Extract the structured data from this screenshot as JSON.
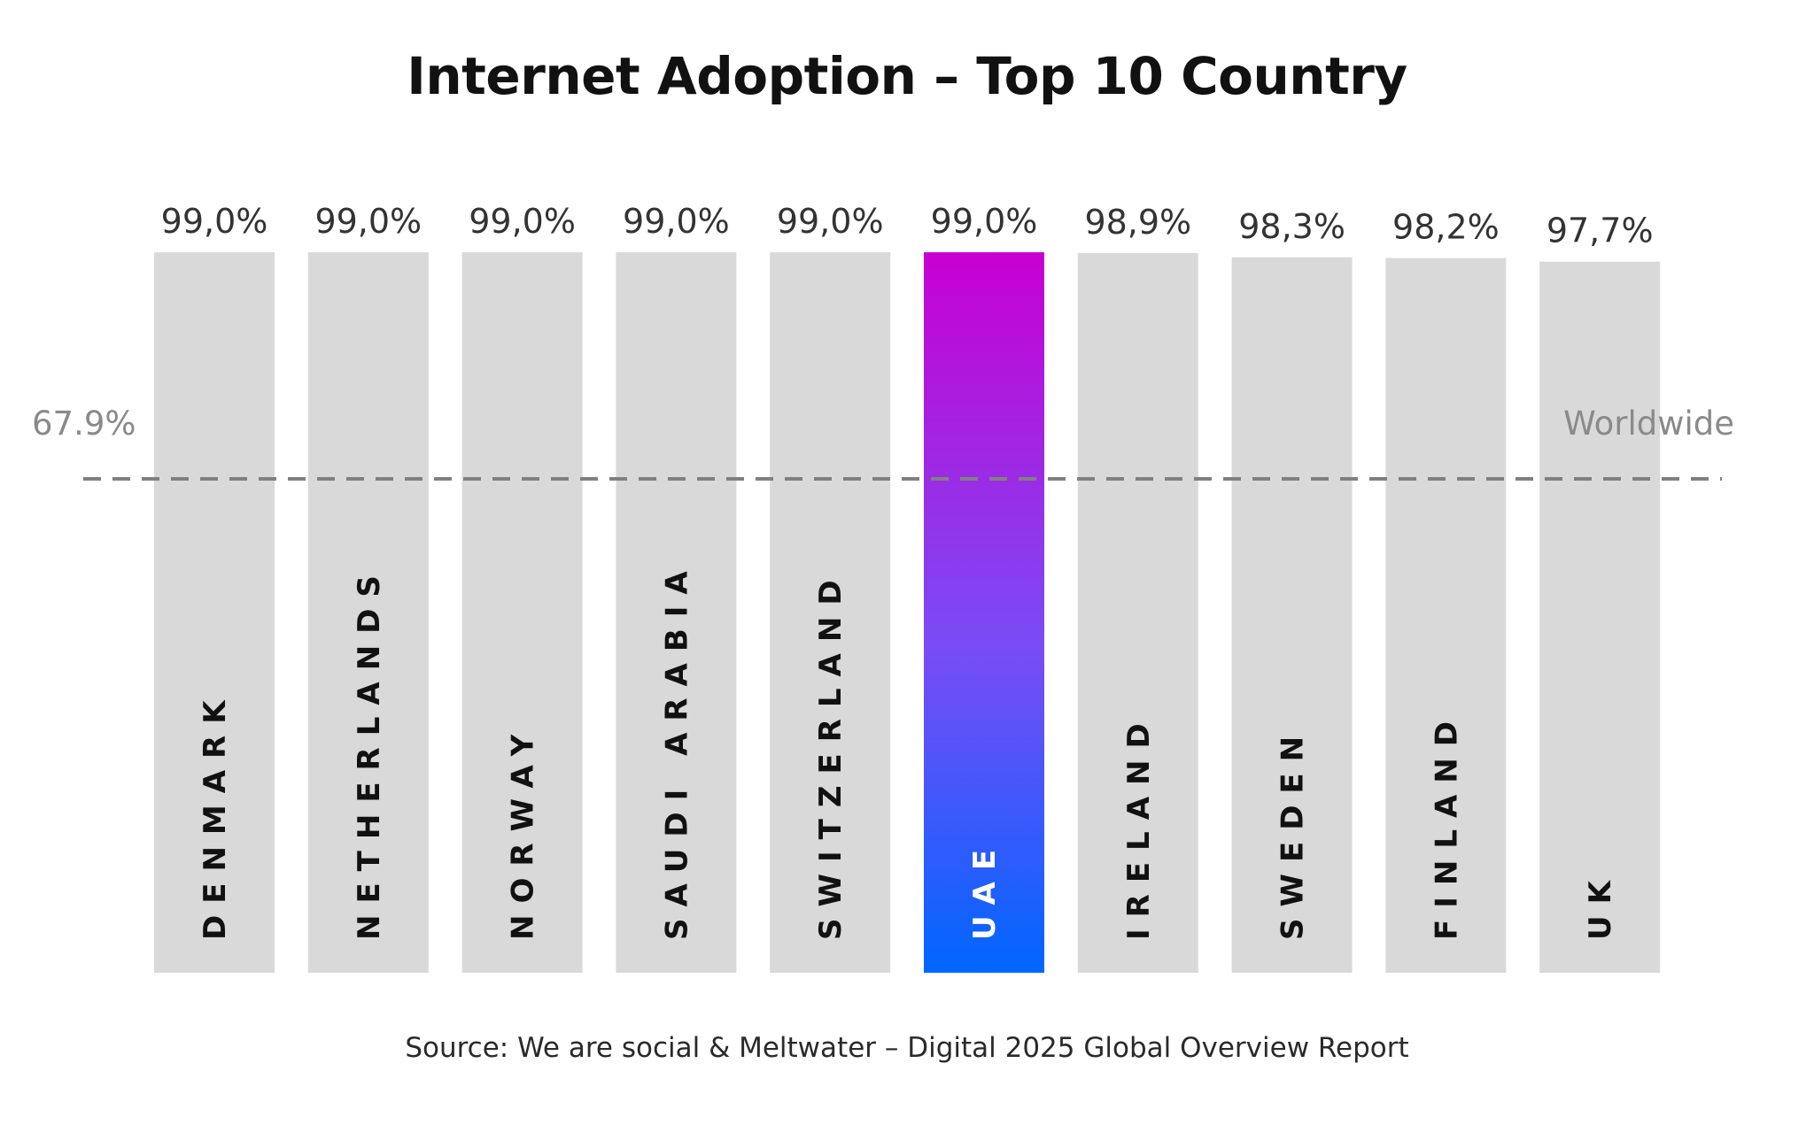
{
  "chart_data": {
    "type": "bar",
    "title": "Internet Adoption – Top 10 Country",
    "categories": [
      "DENMARK",
      "NETHERLANDS",
      "NORWAY",
      "SAUDI ARABIA",
      "SWITZERLAND",
      "UAE",
      "IRELAND",
      "SWEDEN",
      "FINLAND",
      "UK"
    ],
    "values": [
      99.0,
      99.0,
      99.0,
      99.0,
      99.0,
      99.0,
      98.9,
      98.3,
      98.2,
      97.7
    ],
    "value_labels": [
      "99,0%",
      "99,0%",
      "99,0%",
      "99,0%",
      "99,0%",
      "99,0%",
      "98,9%",
      "98,3%",
      "98,2%",
      "97,7%"
    ],
    "highlight": "UAE",
    "reference_line": {
      "value": 67.9,
      "label": "67.9%",
      "name": "Worldwide"
    },
    "xlabel": "",
    "ylabel": "",
    "grid": false,
    "colors": {
      "bar": "#d9d9d9",
      "highlight_top": "#c800d2",
      "highlight_mid": "#7a4cf5",
      "highlight_bottom": "#0066ff",
      "reference": "#808080",
      "category_text": "#111111",
      "highlight_text": "#ffffff"
    }
  },
  "source": "Source: We are social & Meltwater – Digital 2025 Global Overview Report"
}
